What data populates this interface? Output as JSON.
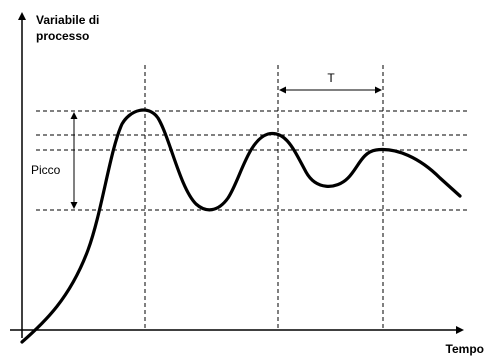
{
  "labels": {
    "y_axis_line1": "Variabile di",
    "y_axis_line2": "processo",
    "x_axis": "Tempo",
    "period": "T",
    "peak": "Picco"
  }
}
